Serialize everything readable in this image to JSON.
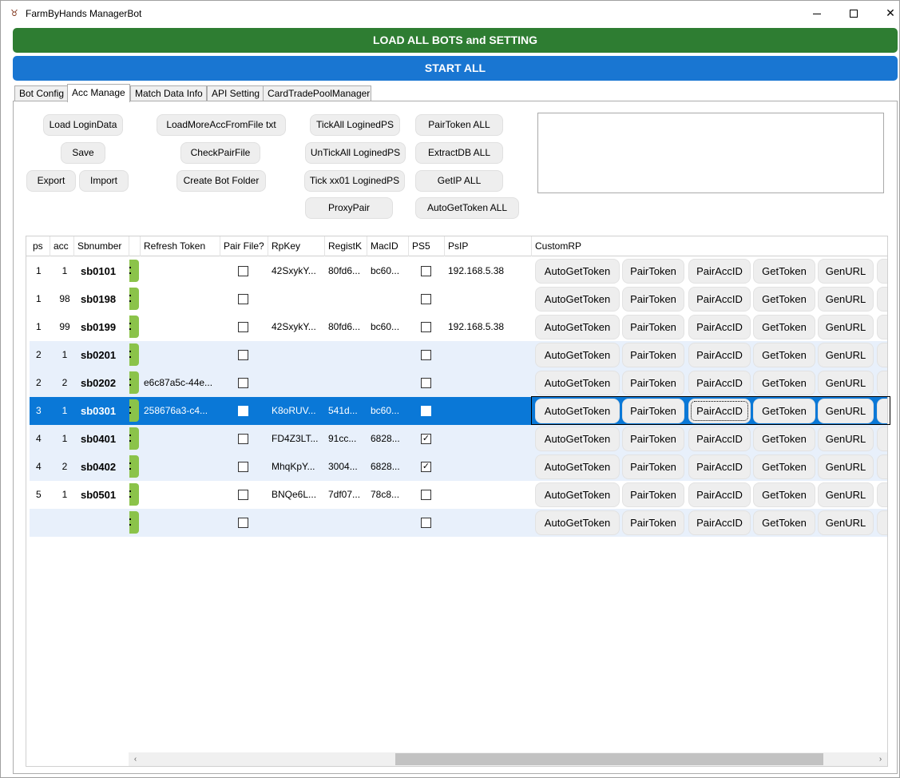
{
  "window": {
    "title": "FarmByHands ManagerBot",
    "app_icon": "farm-app-icon",
    "minimize_icon": "minimize-icon",
    "maximize_icon": "maximize-icon",
    "close_glyph": "✕"
  },
  "top_buttons": {
    "load_all": "LOAD ALL BOTS and SETTING",
    "start_all": "START ALL",
    "load_all_color": "#2e7d32",
    "start_all_color": "#1976d2"
  },
  "tabs": [
    "Bot Config",
    "Acc Manage",
    "Match Data Info",
    "API Setting",
    "CardTradePoolManager"
  ],
  "active_tab": "Acc Manage",
  "controls": {
    "load_login_data": "Load LoginData",
    "save": "Save",
    "export": "Export",
    "import": "Import",
    "load_more_acc": "LoadMoreAccFromFile txt",
    "check_pair_file": "CheckPairFile",
    "create_bot_folder": "Create Bot Folder",
    "tick_all": "TickAll LoginedPS",
    "untick_all": "UnTickAll LoginedPS",
    "tick_xx01": "Tick xx01 LoginedPS",
    "proxy_pair": "ProxyPair",
    "pair_token_all": "PairToken ALL",
    "extract_db_all": "ExtractDB ALL",
    "get_ip_all": "GetIP ALL",
    "auto_get_token_all": "AutoGetToken ALL",
    "log_text": ""
  },
  "grid": {
    "columns": [
      "ps",
      "acc",
      "Sbnumber",
      "",
      "Refresh Token",
      "Pair File?",
      "RpKey",
      "RegistK",
      "MacID",
      "PS5",
      "PsIP",
      "CustomRP"
    ],
    "row_buttons": [
      "AutoGetToken",
      "PairToken",
      "PairAccID",
      "GetToken",
      "GenURL",
      "E"
    ],
    "rows": [
      {
        "ps": "1",
        "acc": "1",
        "sb": "sb0101",
        "token": "",
        "pair": false,
        "rpkey": "42SxykY...",
        "regist": "80fd6...",
        "mac": "bc60...",
        "ps5": false,
        "ip": "192.168.5.38"
      },
      {
        "ps": "1",
        "acc": "98",
        "sb": "sb0198",
        "token": "",
        "pair": false,
        "rpkey": "",
        "regist": "",
        "mac": "",
        "ps5": false,
        "ip": ""
      },
      {
        "ps": "1",
        "acc": "99",
        "sb": "sb0199",
        "token": "",
        "pair": false,
        "rpkey": "42SxykY...",
        "regist": "80fd6...",
        "mac": "bc60...",
        "ps5": false,
        "ip": "192.168.5.38"
      },
      {
        "ps": "2",
        "acc": "1",
        "sb": "sb0201",
        "token": "",
        "pair": false,
        "rpkey": "",
        "regist": "",
        "mac": "",
        "ps5": false,
        "ip": ""
      },
      {
        "ps": "2",
        "acc": "2",
        "sb": "sb0202",
        "token": "e6c87a5c-44e...",
        "pair": false,
        "rpkey": "",
        "regist": "",
        "mac": "",
        "ps5": false,
        "ip": ""
      },
      {
        "ps": "3",
        "acc": "1",
        "sb": "sb0301",
        "token": "258676a3-c4...",
        "pair": false,
        "rpkey": "K8oRUV...",
        "regist": "541d...",
        "mac": "bc60...",
        "ps5": false,
        "ip": ""
      },
      {
        "ps": "4",
        "acc": "1",
        "sb": "sb0401",
        "token": "",
        "pair": false,
        "rpkey": "FD4Z3LT...",
        "regist": "91cc...",
        "mac": "6828...",
        "ps5": true,
        "ip": ""
      },
      {
        "ps": "4",
        "acc": "2",
        "sb": "sb0402",
        "token": "",
        "pair": false,
        "rpkey": "MhqKpY...",
        "regist": "3004...",
        "mac": "6828...",
        "ps5": true,
        "ip": ""
      },
      {
        "ps": "5",
        "acc": "1",
        "sb": "sb0501",
        "token": "",
        "pair": false,
        "rpkey": "BNQe6L...",
        "regist": "7df07...",
        "mac": "78c8...",
        "ps5": false,
        "ip": ""
      },
      {
        "ps": "",
        "acc": "",
        "sb": "",
        "token": "",
        "pair": false,
        "rpkey": "",
        "regist": "",
        "mac": "",
        "ps5": false,
        "ip": ""
      }
    ],
    "selected_row": 5,
    "row_styles": [
      "white",
      "white",
      "white",
      "light",
      "light",
      "sel",
      "light",
      "light",
      "white",
      "light"
    ],
    "check_glyph": "✓",
    "status_color": "#8bc34a",
    "selection_color": "#0a78d7"
  },
  "scrollbar": {
    "left_arrow": "‹",
    "right_arrow": "›"
  }
}
